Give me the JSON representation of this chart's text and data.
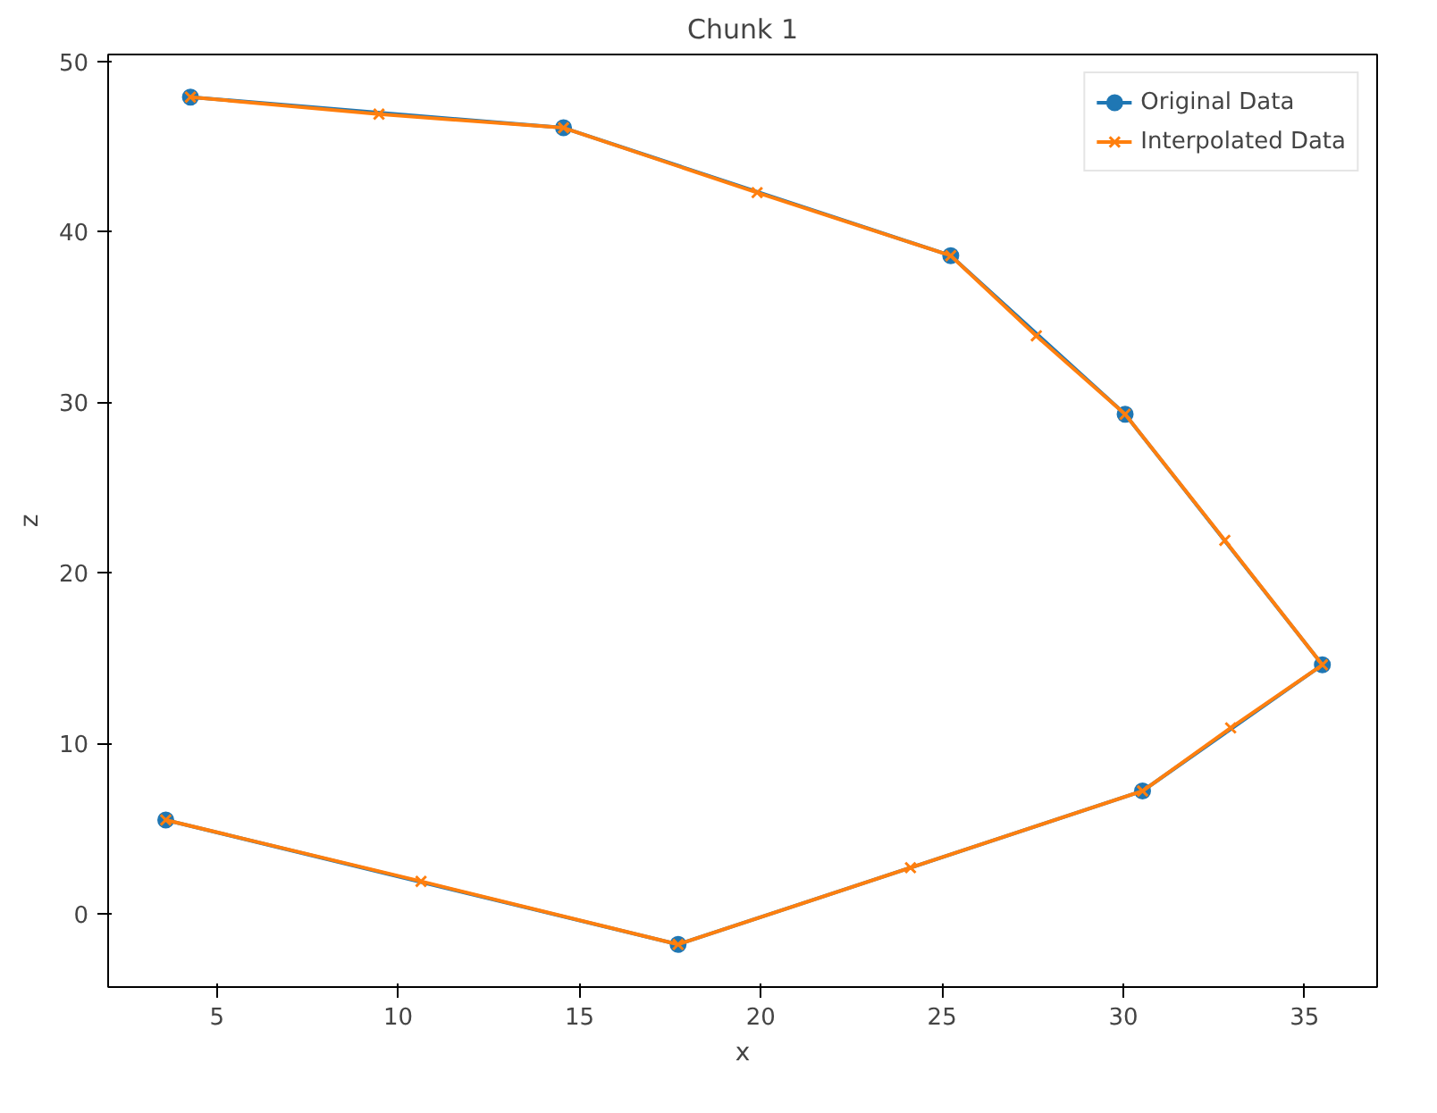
{
  "chart_data": {
    "type": "line",
    "title": "Chunk 1",
    "xlabel": "x",
    "ylabel": "z",
    "x": [
      4.27,
      14.56,
      25.24,
      30.05,
      35.49,
      30.53,
      17.72,
      3.59
    ],
    "series": [
      {
        "name": "Original Data",
        "color": "#1f77b4",
        "marker": "circle",
        "values": [
          47.9,
          46.1,
          38.6,
          29.3,
          14.6,
          7.2,
          -1.8,
          5.5
        ]
      },
      {
        "name": "Interpolated Data",
        "color": "#ff7f0e",
        "marker": "cross",
        "x": [
          4.27,
          9.47,
          14.56,
          19.9,
          25.24,
          27.6,
          30.05,
          32.8,
          35.49,
          32.96,
          30.53,
          24.13,
          17.72,
          10.63,
          3.59
        ],
        "values": [
          47.9,
          46.9,
          46.1,
          42.3,
          38.6,
          33.9,
          29.3,
          21.9,
          14.6,
          10.9,
          7.2,
          2.7,
          -1.8,
          1.9,
          5.5
        ]
      }
    ],
    "xlim": [
      2.0,
      37.0
    ],
    "ylim": [
      -4.3,
      50.4
    ],
    "xticks": [
      5,
      10,
      15,
      20,
      25,
      30,
      35
    ],
    "yticks": [
      0,
      10,
      20,
      30,
      40,
      50
    ],
    "grid": false,
    "legend": "top right",
    "line_style": "solid"
  }
}
